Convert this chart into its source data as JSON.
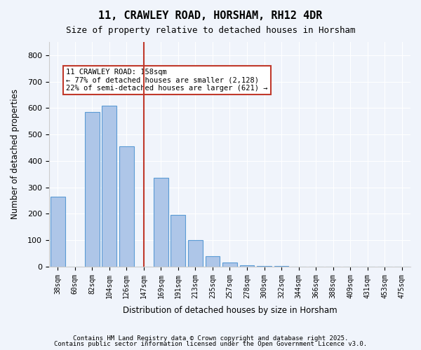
{
  "title1": "11, CRAWLEY ROAD, HORSHAM, RH12 4DR",
  "title2": "Size of property relative to detached houses in Horsham",
  "xlabel": "Distribution of detached houses by size in Horsham",
  "ylabel": "Number of detached properties",
  "categories": [
    "38sqm",
    "60sqm",
    "82sqm",
    "104sqm",
    "126sqm",
    "147sqm",
    "169sqm",
    "191sqm",
    "213sqm",
    "235sqm",
    "257sqm",
    "278sqm",
    "300sqm",
    "322sqm",
    "344sqm",
    "366sqm",
    "388sqm",
    "409sqm",
    "431sqm",
    "453sqm",
    "475sqm"
  ],
  "values": [
    265,
    0,
    585,
    610,
    455,
    0,
    335,
    195,
    100,
    40,
    15,
    5,
    3,
    2,
    1,
    1,
    0,
    0,
    0,
    0,
    0
  ],
  "bar_color": "#aec6e8",
  "bar_edge_color": "#5b9bd5",
  "vline_color": "#c0392b",
  "vline_x_index": 5,
  "annotation_text": "11 CRAWLEY ROAD: 158sqm\n← 77% of detached houses are smaller (2,128)\n22% of semi-detached houses are larger (621) →",
  "annotation_box_color": "#c0392b",
  "annotation_text_color": "#000000",
  "ylim": [
    0,
    850
  ],
  "yticks": [
    0,
    100,
    200,
    300,
    400,
    500,
    600,
    700,
    800
  ],
  "footer1": "Contains HM Land Registry data © Crown copyright and database right 2025.",
  "footer2": "Contains public sector information licensed under the Open Government Licence v3.0.",
  "background_color": "#f0f4fb",
  "grid_color": "#ffffff"
}
